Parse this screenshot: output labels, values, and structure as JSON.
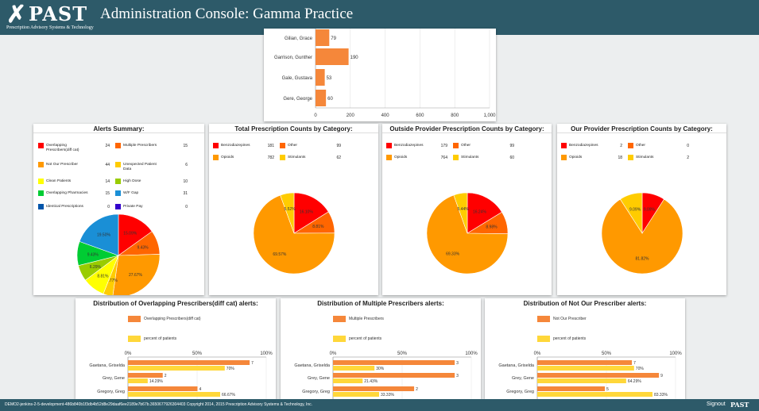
{
  "header": {
    "logo_mark": "✗",
    "logo_text": "PAST",
    "logo_subtitle": "Prescription Advisory Systems & Technology",
    "title": "Administration Console: Gamma Practice"
  },
  "footer": {
    "copyright": "DEMO2-jenkins-2-5-development-486b840b1f3db4b52d8e29daaf6ee2189e7b67b.3650677926304403 Copyright 2014, 2015 Prescription Advisory Systems & Technology, Inc.",
    "signout": "Signout",
    "logo": "PAST"
  },
  "chart_data": [
    {
      "id": "top-prescriber-bars",
      "type": "bar",
      "orientation": "horizontal",
      "categories": [
        "Gilian, Grace",
        "Garrison, Gunther",
        "Gale, Gustava",
        "Gere, George"
      ],
      "values": [
        79,
        190,
        53,
        60
      ],
      "xlim": [
        0,
        1000
      ],
      "x_ticks": [
        "0",
        "200",
        "400",
        "600",
        "800",
        "1,000"
      ],
      "color": "#f5873a"
    },
    {
      "id": "alerts-summary",
      "type": "pie",
      "title": "Alerts Summary:",
      "legend": [
        {
          "label": "Overlapping Prescribers(diff cat)",
          "value": "24",
          "color": "#ff0000"
        },
        {
          "label": "Multiple Prescribers",
          "value": "15",
          "color": "#ff6600"
        },
        {
          "label": "Not Our Prescriber",
          "value": "44",
          "color": "#ff9900"
        },
        {
          "label": "Unexpected Patient Data",
          "value": "6",
          "color": "#ffcc00"
        },
        {
          "label": "Clean Patients",
          "value": "14",
          "color": "#ffff00"
        },
        {
          "label": "High Dose",
          "value": "10",
          "color": "#99cc00"
        },
        {
          "label": "Overlapping Pharmacies",
          "value": "15",
          "color": "#00cc33"
        },
        {
          "label": "W/F Gap",
          "value": "31",
          "color": "#1a8fd6"
        },
        {
          "label": "Identical Prescriptions",
          "value": "0",
          "color": "#0055aa"
        },
        {
          "label": "Private Pay",
          "value": "0",
          "color": "#3300cc"
        }
      ],
      "slices": [
        {
          "value": 24,
          "color": "#ff0000",
          "label": "15.09%"
        },
        {
          "value": 15,
          "color": "#ff6600",
          "label": "9.43%"
        },
        {
          "value": 44,
          "color": "#ff9900",
          "label": "27.67%"
        },
        {
          "value": 6,
          "color": "#ffcc00",
          "label": "3.77%"
        },
        {
          "value": 14,
          "color": "#ffff00",
          "label": "8.81%"
        },
        {
          "value": 10,
          "color": "#99cc00",
          "label": "6.29%"
        },
        {
          "value": 15,
          "color": "#00cc33",
          "label": "9.43%"
        },
        {
          "value": 31,
          "color": "#1a8fd6",
          "label": "19.50%"
        }
      ]
    },
    {
      "id": "total-rx",
      "type": "pie",
      "title": "Total Prescription Counts by Category:",
      "legend": [
        {
          "label": "Benzodiazepines",
          "value": "181",
          "color": "#ff0000"
        },
        {
          "label": "Other",
          "value": "99",
          "color": "#ff6600"
        },
        {
          "label": "Opioids",
          "value": "782",
          "color": "#ff9900"
        },
        {
          "label": "Stimulants",
          "value": "62",
          "color": "#ffcc00"
        }
      ],
      "slices": [
        {
          "value": 181,
          "color": "#ff0000",
          "label": "16.10%"
        },
        {
          "value": 99,
          "color": "#ff6600",
          "label": "8.81%"
        },
        {
          "value": 782,
          "color": "#ff9900",
          "label": "69.57%"
        },
        {
          "value": 62,
          "color": "#ffcc00",
          "label": "5.52%"
        }
      ]
    },
    {
      "id": "outside-rx",
      "type": "pie",
      "title": "Outside Provider Prescription Counts by Category:",
      "legend": [
        {
          "label": "Benzodiazepines",
          "value": "179",
          "color": "#ff0000"
        },
        {
          "label": "Other",
          "value": "99",
          "color": "#ff6600"
        },
        {
          "label": "Opioids",
          "value": "764",
          "color": "#ff9900"
        },
        {
          "label": "Stimulants",
          "value": "60",
          "color": "#ffcc00"
        }
      ],
      "slices": [
        {
          "value": 179,
          "color": "#ff0000",
          "label": "16.24%"
        },
        {
          "value": 99,
          "color": "#ff6600",
          "label": "8.98%"
        },
        {
          "value": 764,
          "color": "#ff9900",
          "label": "69.33%"
        },
        {
          "value": 60,
          "color": "#ffcc00",
          "label": "5.44%"
        }
      ]
    },
    {
      "id": "our-rx",
      "type": "pie",
      "title": "Our Provider Prescription Counts by Category:",
      "legend": [
        {
          "label": "Benzodiazepines",
          "value": "2",
          "color": "#ff0000"
        },
        {
          "label": "Other",
          "value": "0",
          "color": "#ff6600"
        },
        {
          "label": "Opioids",
          "value": "18",
          "color": "#ff9900"
        },
        {
          "label": "Stimulants",
          "value": "2",
          "color": "#ffcc00"
        }
      ],
      "slices": [
        {
          "value": 2,
          "color": "#ff0000",
          "label": "9.09%"
        },
        {
          "value": 0,
          "color": "#ff6600",
          "label": ""
        },
        {
          "value": 18,
          "color": "#ff9900",
          "label": "81.82%"
        },
        {
          "value": 2,
          "color": "#ffcc00",
          "label": "9.09%"
        }
      ]
    },
    {
      "id": "dist-overlapping",
      "type": "bar",
      "orientation": "horizontal",
      "title": "Distribution of Overlapping Prescribers(diff cat) alerts:",
      "legend": [
        {
          "label": "Overlapping Prescribers(diff cat)",
          "color": "#f5873a"
        },
        {
          "label": "percent of patients",
          "color": "#ffd73a"
        }
      ],
      "xlim": [
        0,
        100
      ],
      "x_ticks": [
        "0%",
        "50%",
        "100%"
      ],
      "max_count": 7,
      "categories": [
        "Gaetana, Griselda",
        "Grey, Gene",
        "Gregory, Greg"
      ],
      "series": [
        {
          "name": "Overlapping Prescribers(diff cat)",
          "values": [
            7,
            2,
            4
          ],
          "labels": [
            "7",
            "2",
            "4"
          ]
        },
        {
          "name": "percent of patients",
          "values": [
            70,
            14.29,
            66.67
          ],
          "labels": [
            "70%",
            "14.29%",
            "66.67%"
          ]
        }
      ]
    },
    {
      "id": "dist-multiple",
      "type": "bar",
      "orientation": "horizontal",
      "title": "Distribution of Multiple Prescribers alerts:",
      "legend": [
        {
          "label": "Multiple Prescribers",
          "color": "#f5873a"
        },
        {
          "label": "percent of patients",
          "color": "#ffd73a"
        }
      ],
      "xlim": [
        0,
        100
      ],
      "x_ticks": [
        "0%",
        "50%",
        "100%"
      ],
      "max_count": 3,
      "categories": [
        "Gaetana, Griselda",
        "Grey, Gene",
        "Gregory, Greg"
      ],
      "series": [
        {
          "name": "Multiple Prescribers",
          "values": [
            3,
            3,
            2
          ],
          "labels": [
            "3",
            "3",
            "2"
          ]
        },
        {
          "name": "percent of patients",
          "values": [
            30,
            21.43,
            33.33
          ],
          "labels": [
            "30%",
            "21.43%",
            "33.33%"
          ]
        }
      ]
    },
    {
      "id": "dist-notour",
      "type": "bar",
      "orientation": "horizontal",
      "title": "Distribution of Not Our Prescriber alerts:",
      "legend": [
        {
          "label": "Not Our Prescriber",
          "color": "#f5873a"
        },
        {
          "label": "percent of patients",
          "color": "#ffd73a"
        }
      ],
      "xlim": [
        0,
        100
      ],
      "x_ticks": [
        "0%",
        "50%",
        "100%"
      ],
      "max_count": 9,
      "categories": [
        "Gaetana, Griselda",
        "Grey, Gene",
        "Gregory, Greg"
      ],
      "series": [
        {
          "name": "Not Our Prescriber",
          "values": [
            7,
            9,
            5
          ],
          "labels": [
            "7",
            "9",
            "5"
          ]
        },
        {
          "name": "percent of patients",
          "values": [
            70,
            64.29,
            83.33
          ],
          "labels": [
            "70%",
            "64.29%",
            "83.33%"
          ]
        }
      ]
    }
  ]
}
